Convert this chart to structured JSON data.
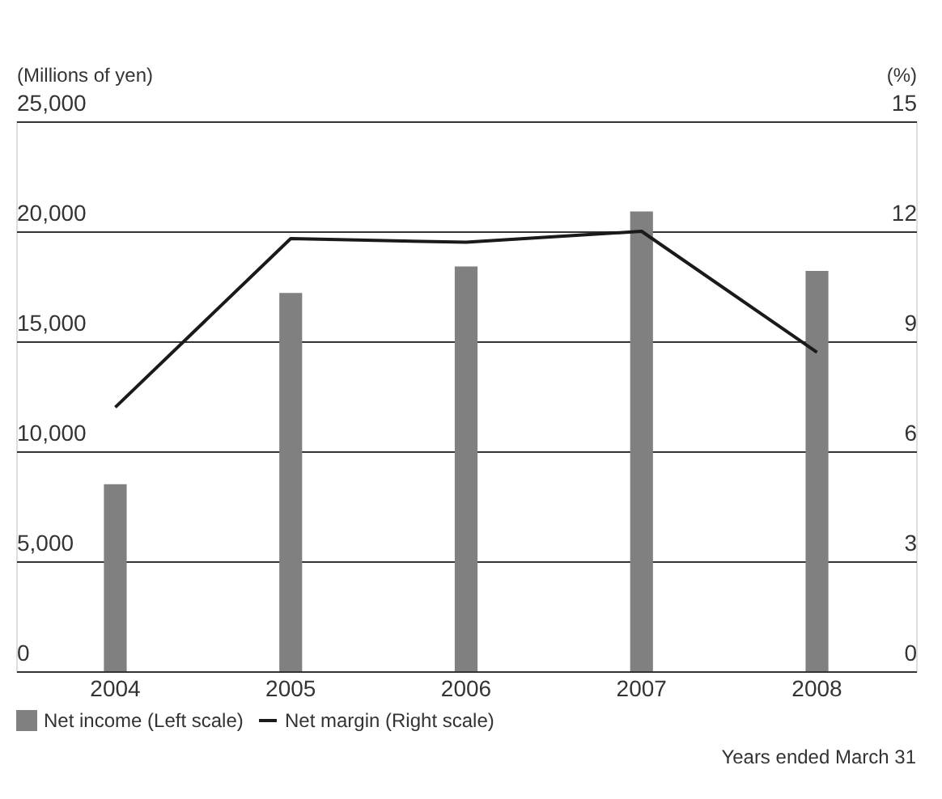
{
  "chart_data": {
    "type": "bar",
    "ylabel": "(Millions of yen)",
    "y2label": "(%)",
    "categories": [
      "2004",
      "2005",
      "2006",
      "2007",
      "2008"
    ],
    "series": [
      {
        "name": "Net income (Left scale)",
        "type": "bar",
        "color": "#808080",
        "values": [
          8500,
          17200,
          18400,
          20900,
          18200
        ]
      },
      {
        "name": "Net margin (Right scale)",
        "type": "line",
        "axis": "y2",
        "color": "#1a1a1a",
        "values": [
          7.2,
          11.8,
          11.7,
          12.0,
          8.7
        ]
      }
    ],
    "ylim": [
      0,
      25000
    ],
    "yticks": [
      0,
      {
        "value": 5000,
        "label": "5,000"
      },
      {
        "value": 10000,
        "label": "10,000"
      },
      {
        "value": 15000,
        "label": "15,000"
      },
      {
        "value": 20000,
        "label": "20,000"
      },
      {
        "value": 25000,
        "label": "25,000"
      }
    ],
    "y2lim": [
      0,
      15
    ],
    "y2ticks": [
      0,
      3,
      6,
      9,
      12,
      15
    ],
    "grid": "y",
    "legend": "bottom",
    "annotations": [
      "Years ended March 31"
    ]
  }
}
